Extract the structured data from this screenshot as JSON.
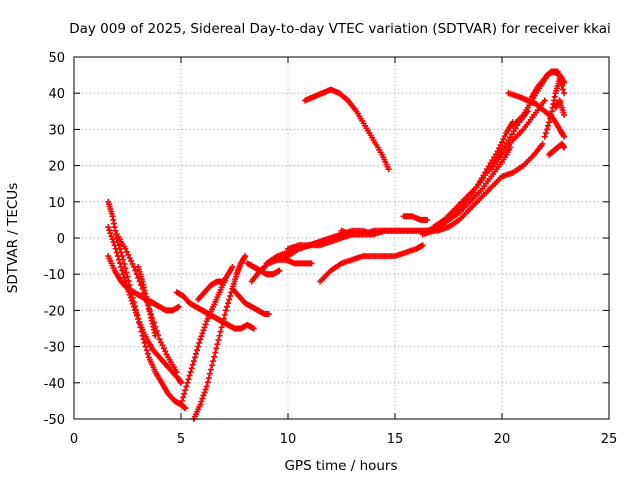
{
  "chart_data": {
    "type": "scatter",
    "title": "Day 009 of 2025, Sidereal Day-to-day VTEC variation (SDTVAR) for receiver kkai",
    "xlabel": "GPS time / hours",
    "ylabel": "SDTVAR / TECUs",
    "xlim": [
      0,
      25
    ],
    "ylim": [
      -50,
      50
    ],
    "xticks": [
      "0",
      "5",
      "10",
      "15",
      "20",
      "25"
    ],
    "yticks": [
      "-50",
      "-40",
      "-30",
      "-20",
      "-10",
      "0",
      "10",
      "20",
      "30",
      "40",
      "50"
    ],
    "grid": true,
    "marker": "plus",
    "color": "#ff0000",
    "series": [
      {
        "x": [
          1.6,
          1.8,
          2.0,
          2.3,
          2.6,
          2.9,
          3.2,
          3.5,
          3.8,
          4.1,
          4.4,
          4.7,
          5.0,
          5.2
        ],
        "y": [
          10,
          6,
          0,
          -6,
          -13,
          -20,
          -27,
          -33,
          -37,
          -40,
          -43,
          -45,
          -46,
          -47
        ]
      },
      {
        "x": [
          1.6,
          1.9,
          2.2,
          2.5,
          2.8,
          3.1,
          3.4,
          3.7,
          4.0,
          4.3,
          4.6,
          4.9,
          5.0
        ],
        "y": [
          3,
          -2,
          -8,
          -14,
          -19,
          -24,
          -28,
          -31,
          -33,
          -35,
          -37,
          -39,
          -40
        ]
      },
      {
        "x": [
          1.6,
          1.9,
          2.2,
          2.5,
          2.8,
          3.1,
          3.4,
          3.7,
          4.0,
          4.3,
          4.6,
          4.9
        ],
        "y": [
          -5,
          -9,
          -12,
          -14,
          -15,
          -16,
          -17,
          -18,
          -19,
          -20,
          -20,
          -19
        ]
      },
      {
        "x": [
          2.0,
          2.4,
          2.8,
          3.2,
          3.6,
          4.0,
          4.4,
          4.8
        ],
        "y": [
          1,
          -3,
          -8,
          -14,
          -21,
          -28,
          -33,
          -37
        ]
      },
      {
        "x": [
          3.0,
          3.2,
          3.4,
          3.6,
          3.8
        ],
        "y": [
          -8,
          -12,
          -17,
          -22,
          -27
        ]
      },
      {
        "x": [
          5.6,
          5.9,
          6.2,
          6.5,
          6.8,
          7.1,
          7.4,
          7.6,
          7.8,
          8.0
        ],
        "y": [
          -50,
          -46,
          -41,
          -34,
          -27,
          -20,
          -14,
          -10,
          -7,
          -5
        ]
      },
      {
        "x": [
          5.0,
          5.3,
          5.6,
          5.9,
          6.2,
          6.5,
          6.8,
          7.1,
          7.4
        ],
        "y": [
          -46,
          -40,
          -34,
          -28,
          -23,
          -19,
          -15,
          -11,
          -8
        ]
      },
      {
        "x": [
          4.8,
          5.1,
          5.4,
          5.7,
          6.0,
          6.3,
          6.6,
          6.9,
          7.2,
          7.5,
          7.8,
          8.1,
          8.4
        ],
        "y": [
          -15,
          -16,
          -18,
          -19,
          -20,
          -21,
          -22,
          -23,
          -24,
          -25,
          -25,
          -24,
          -25
        ]
      },
      {
        "x": [
          5.8,
          6.1,
          6.4,
          6.7,
          7.0
        ],
        "y": [
          -17,
          -15,
          -13,
          -12,
          -12
        ]
      },
      {
        "x": [
          7.4,
          7.7,
          8.0,
          8.3,
          8.6,
          8.9,
          9.1
        ],
        "y": [
          -14,
          -16,
          -18,
          -19,
          -20,
          -21,
          -21
        ]
      },
      {
        "x": [
          8.1,
          8.4,
          8.7,
          9.0,
          9.3,
          9.6
        ],
        "y": [
          -7,
          -8,
          -9,
          -10,
          -10,
          -9
        ]
      },
      {
        "x": [
          8.3,
          8.7,
          9.1,
          9.5,
          9.9,
          10.3,
          10.7,
          11.1
        ],
        "y": [
          -12,
          -9,
          -7,
          -6,
          -6,
          -7,
          -7,
          -7
        ]
      },
      {
        "x": [
          9.0,
          9.5,
          10.0,
          10.5,
          11.0,
          11.5,
          12.0,
          12.5,
          13.0
        ],
        "y": [
          -7,
          -5,
          -4,
          -3,
          -2,
          -2,
          -1,
          0,
          1
        ]
      },
      {
        "x": [
          9.5,
          10.0,
          10.5,
          11.0,
          11.5,
          12.0,
          12.5,
          13.0,
          13.5,
          14.0
        ],
        "y": [
          -6,
          -5,
          -3,
          -2,
          -1,
          0,
          1,
          2,
          2,
          1
        ]
      },
      {
        "x": [
          10.0,
          10.5,
          11.0,
          11.5,
          12.0,
          12.5,
          13.0,
          13.5,
          14.0,
          14.5,
          15.0,
          15.5,
          16.0,
          16.5
        ],
        "y": [
          -3,
          -2,
          -2,
          -1,
          0,
          1,
          1,
          1,
          1,
          2,
          2,
          2,
          2,
          2
        ]
      },
      {
        "x": [
          10.8,
          11.2,
          11.6,
          12.0,
          12.4,
          12.8,
          13.2,
          13.6,
          14.0,
          14.4,
          14.7
        ],
        "y": [
          38,
          39,
          40,
          41,
          40,
          38,
          35,
          31,
          27,
          23,
          19
        ]
      },
      {
        "x": [
          11.5,
          12.0,
          12.5,
          13.0,
          13.5,
          14.0,
          14.5,
          15.0,
          15.5,
          16.0,
          16.3
        ],
        "y": [
          -12,
          -9,
          -7,
          -6,
          -5,
          -5,
          -5,
          -5,
          -4,
          -3,
          -2
        ]
      },
      {
        "x": [
          12.5,
          13.0,
          13.5,
          14.0,
          14.5,
          15.0,
          15.5,
          16.0,
          16.5,
          17.0
        ],
        "y": [
          2,
          1,
          1,
          2,
          2,
          2,
          2,
          2,
          2,
          2
        ]
      },
      {
        "x": [
          15.4,
          15.8,
          16.2,
          16.5
        ],
        "y": [
          6,
          6,
          5,
          5
        ]
      },
      {
        "x": [
          16.5,
          17.0,
          17.5,
          18.0,
          18.5,
          19.0,
          19.5,
          20.0,
          20.4
        ],
        "y": [
          2,
          3,
          5,
          7,
          10,
          13,
          17,
          21,
          25
        ]
      },
      {
        "x": [
          16.3,
          16.8,
          17.3,
          17.8,
          18.3,
          18.8,
          19.3,
          19.8,
          20.2,
          20.5
        ],
        "y": [
          1,
          2,
          4,
          7,
          10,
          14,
          19,
          24,
          29,
          32
        ]
      },
      {
        "x": [
          16.8,
          17.3,
          17.8,
          18.3,
          18.8,
          19.3,
          19.8,
          20.3,
          20.8,
          21.2
        ],
        "y": [
          3,
          5,
          8,
          11,
          14,
          18,
          22,
          27,
          32,
          35
        ]
      },
      {
        "x": [
          17.0,
          17.5,
          18.0,
          18.5,
          19.0,
          19.5,
          20.0,
          20.5,
          21.0,
          21.5,
          21.9
        ],
        "y": [
          2,
          3,
          5,
          8,
          11,
          14,
          17,
          18,
          20,
          23,
          26
        ]
      },
      {
        "x": [
          19.5,
          20.0,
          20.5,
          21.0,
          21.5,
          22.0
        ],
        "y": [
          19,
          23,
          27,
          30,
          34,
          38
        ]
      },
      {
        "x": [
          20.3,
          20.8,
          21.2,
          21.6,
          22.0,
          22.4,
          22.7,
          22.9
        ],
        "y": [
          40,
          39,
          38,
          37,
          35,
          33,
          30,
          28
        ]
      },
      {
        "x": [
          20.5,
          21.0,
          21.4,
          21.8,
          22.1,
          22.4,
          22.7,
          22.9
        ],
        "y": [
          31,
          34,
          38,
          42,
          45,
          46,
          45,
          43
        ]
      },
      {
        "x": [
          21.4,
          21.7,
          22.0,
          22.3,
          22.6,
          22.9
        ],
        "y": [
          39,
          42,
          44,
          46,
          46,
          40
        ]
      },
      {
        "x": [
          22.0,
          22.3,
          22.5,
          22.7,
          22.9
        ],
        "y": [
          28,
          34,
          40,
          44,
          43
        ]
      },
      {
        "x": [
          22.2,
          22.4,
          22.6,
          22.8,
          22.9
        ],
        "y": [
          23,
          24,
          25,
          26,
          25
        ]
      },
      {
        "x": [
          22.5,
          22.7,
          22.9
        ],
        "y": [
          36,
          38,
          34
        ]
      }
    ]
  }
}
